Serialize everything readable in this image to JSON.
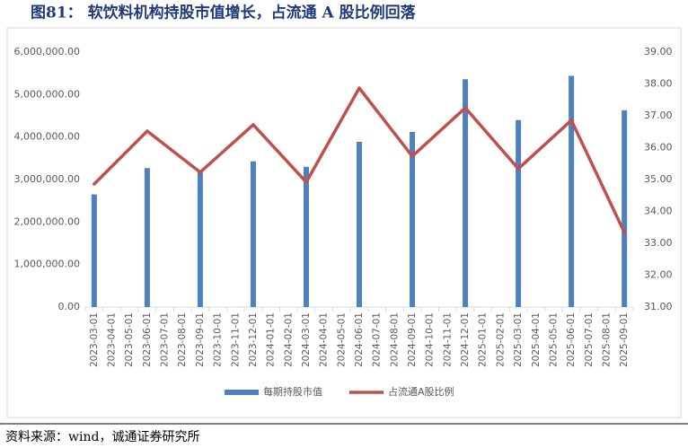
{
  "chart_data": {
    "type": "bar-line",
    "title": "图81：  软饮料机构持股市值增长，占流通 A 股比例回落",
    "source": "资料来源：wind，诚通证券研究所",
    "categories": [
      "2023-03-01",
      "2023-04-01",
      "2023-05-01",
      "2023-06-01",
      "2023-07-01",
      "2023-08-01",
      "2023-09-01",
      "2023-10-01",
      "2023-11-01",
      "2023-12-01",
      "2024-01-01",
      "2024-02-01",
      "2024-03-01",
      "2024-04-01",
      "2024-05-01",
      "2024-06-01",
      "2024-07-01",
      "2024-08-01",
      "2024-09-01",
      "2024-10-01",
      "2024-11-01",
      "2024-12-01",
      "2025-01-01",
      "2025-02-01",
      "2025-03-01",
      "2025-04-01",
      "2025-05-01",
      "2025-06-01",
      "2025-07-01",
      "2025-08-01",
      "2025-09-01"
    ],
    "series": [
      {
        "name": "每期持股市值",
        "type": "bar",
        "color": "#4f81bd",
        "values": [
          2650000,
          null,
          null,
          3270000,
          null,
          null,
          3180000,
          null,
          null,
          3430000,
          null,
          null,
          3300000,
          null,
          null,
          3890000,
          null,
          null,
          4120000,
          null,
          null,
          5360000,
          null,
          null,
          4400000,
          null,
          null,
          5440000,
          null,
          null,
          4630000
        ]
      },
      {
        "name": "占流通A股比例",
        "type": "line",
        "axis": "y2",
        "color": "#c0504d",
        "connect_nulls": true,
        "values": [
          34.86,
          null,
          null,
          36.52,
          null,
          null,
          35.23,
          null,
          null,
          36.72,
          null,
          null,
          34.92,
          null,
          null,
          37.87,
          null,
          null,
          35.73,
          null,
          null,
          37.25,
          null,
          null,
          35.34,
          null,
          null,
          36.86,
          null,
          null,
          33.34
        ]
      }
    ],
    "ylim": [
      0,
      6000000
    ],
    "yticks": [
      {
        "value": 0,
        "label": "0.00"
      },
      {
        "value": 1000000,
        "label": "1,000,000.00"
      },
      {
        "value": 2000000,
        "label": "2,000,000.00"
      },
      {
        "value": 3000000,
        "label": "3,000,000.00"
      },
      {
        "value": 4000000,
        "label": "4,000,000.00"
      },
      {
        "value": 5000000,
        "label": "5,000,000.00"
      },
      {
        "value": 6000000,
        "label": "6,000,000.00"
      }
    ],
    "y2lim": [
      31,
      39
    ],
    "y2ticks": [
      {
        "value": 31,
        "label": "31.00"
      },
      {
        "value": 32,
        "label": "32.00"
      },
      {
        "value": 33,
        "label": "33.00"
      },
      {
        "value": 34,
        "label": "34.00"
      },
      {
        "value": 35,
        "label": "35.00"
      },
      {
        "value": 36,
        "label": "36.00"
      },
      {
        "value": 37,
        "label": "37.00"
      },
      {
        "value": 38,
        "label": "38.00"
      },
      {
        "value": 39,
        "label": "39.00"
      }
    ],
    "legend": "bottom"
  }
}
